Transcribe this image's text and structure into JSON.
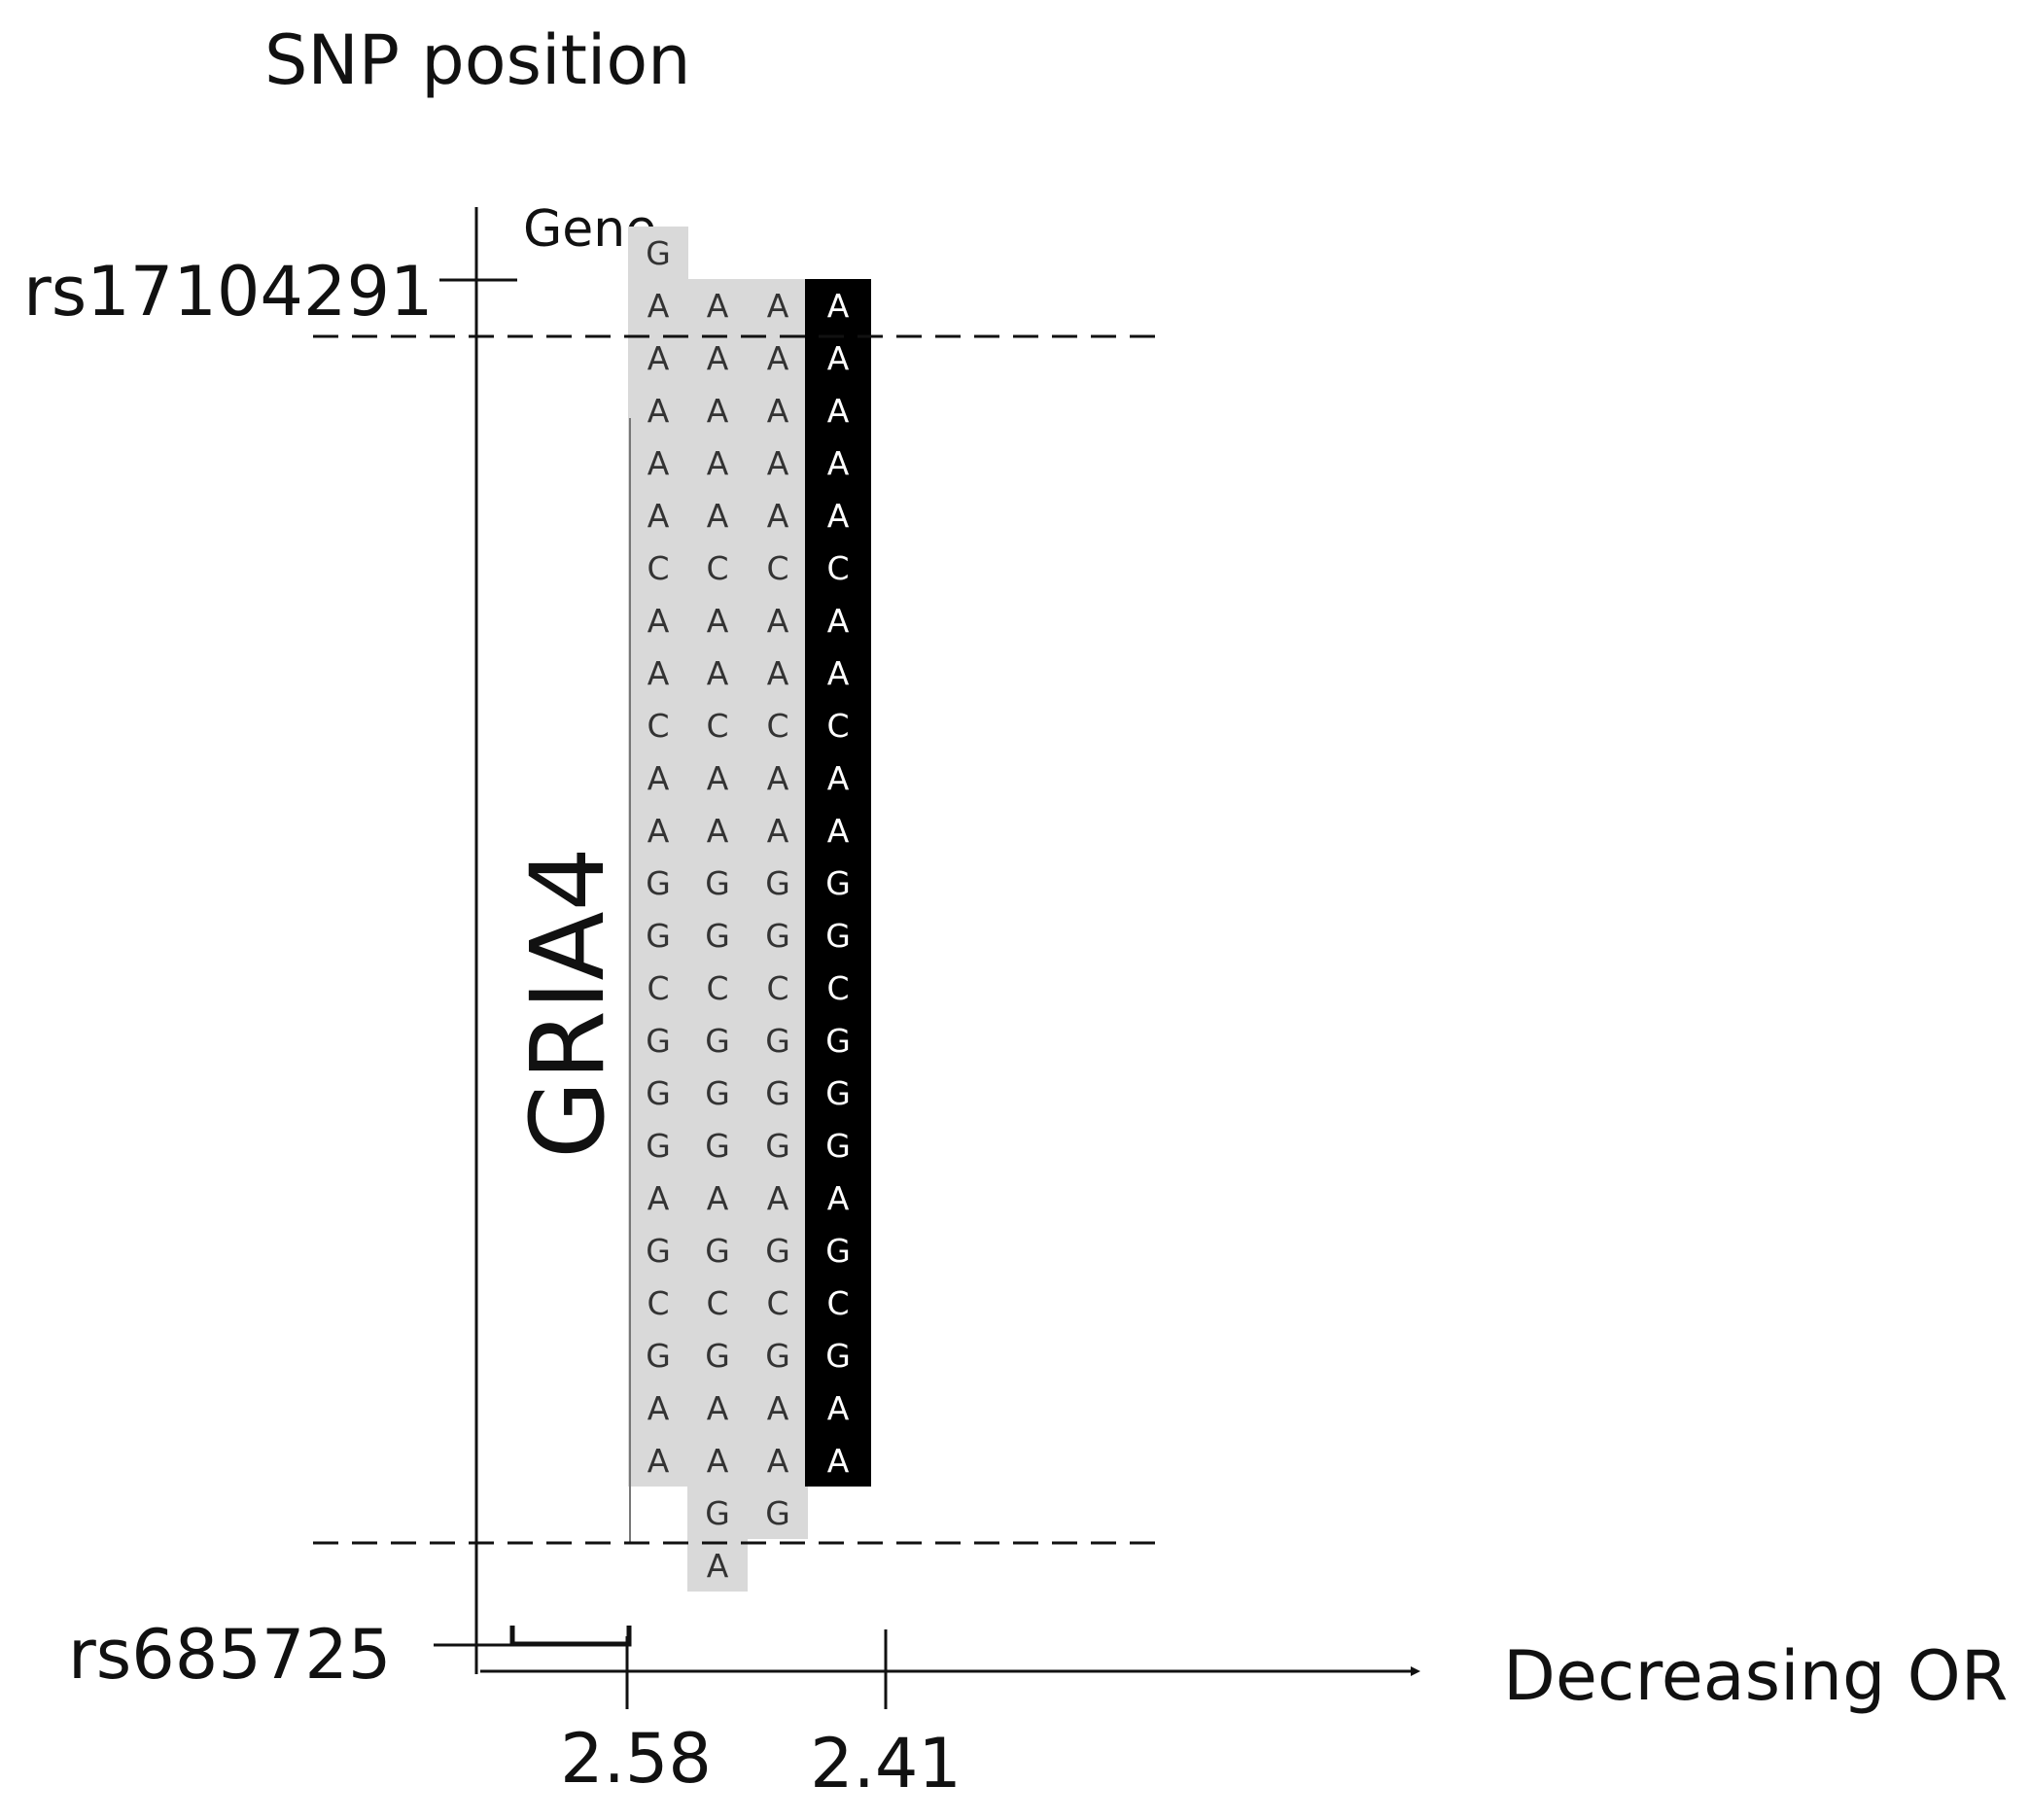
{
  "title": "SNP position",
  "gene_header": "Gene",
  "gene_name": "GRIA4",
  "snp_top": "rs17104291",
  "snp_bottom": "rs685725",
  "x_axis_label": "Decreasing OR",
  "x_ticks": [
    "2.58",
    "2.41"
  ],
  "colors": {
    "haplotype": "#d9d9d9",
    "best": "#000000",
    "line": "#111111"
  },
  "haplotypes": [
    {
      "id": "h1",
      "highlight": false,
      "start_row": 0,
      "bases": [
        "G",
        "A",
        "A",
        "A",
        "A",
        "A",
        "C",
        "A",
        "A",
        "C",
        "A",
        "A",
        "G",
        "G",
        "C",
        "G",
        "G",
        "G",
        "A",
        "G",
        "C",
        "G",
        "A",
        "A"
      ]
    },
    {
      "id": "h2",
      "highlight": false,
      "start_row": 1,
      "bases": [
        "A",
        "A",
        "A",
        "A",
        "A",
        "C",
        "A",
        "A",
        "C",
        "A",
        "A",
        "G",
        "G",
        "C",
        "G",
        "G",
        "G",
        "A",
        "G",
        "C",
        "G",
        "A",
        "A",
        "G",
        "A"
      ]
    },
    {
      "id": "h3",
      "highlight": false,
      "start_row": 1,
      "bases": [
        "A",
        "A",
        "A",
        "A",
        "A",
        "C",
        "A",
        "A",
        "C",
        "A",
        "A",
        "G",
        "G",
        "C",
        "G",
        "G",
        "G",
        "A",
        "G",
        "C",
        "G",
        "A",
        "A",
        "G"
      ]
    },
    {
      "id": "h4",
      "highlight": true,
      "start_row": 1,
      "bases": [
        "A",
        "A",
        "A",
        "A",
        "A",
        "C",
        "A",
        "A",
        "C",
        "A",
        "A",
        "G",
        "G",
        "C",
        "G",
        "G",
        "G",
        "A",
        "G",
        "C",
        "G",
        "A",
        "A"
      ]
    }
  ]
}
